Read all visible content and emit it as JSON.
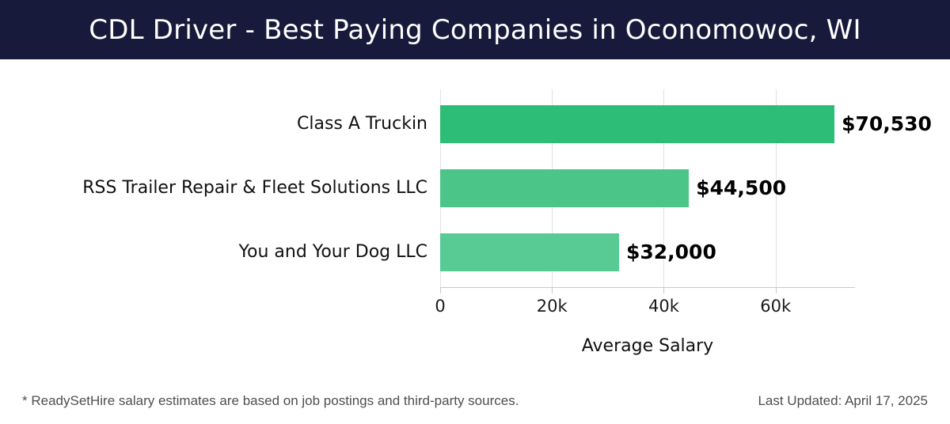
{
  "header": {
    "title": "CDL Driver - Best Paying Companies in Oconomowoc, WI",
    "background_color": "#181a3b",
    "text_color": "#ffffff"
  },
  "chart_data": {
    "type": "bar",
    "orientation": "horizontal",
    "title": "CDL Driver - Best Paying Companies in Oconomowoc, WI",
    "categories": [
      "Class A Truckin",
      "RSS Trailer Repair & Fleet Solutions LLC",
      "You and Your Dog LLC"
    ],
    "values": [
      70530,
      44500,
      32000
    ],
    "value_labels": [
      "$70,530",
      "$44,500",
      "$32,000"
    ],
    "bar_colors": [
      "#2dbd76",
      "#4cc688",
      "#57cb93"
    ],
    "xlabel": "Average Salary",
    "ylabel": "",
    "xlim": [
      0,
      74200
    ],
    "x_ticks": [
      {
        "value": 0,
        "label": "0"
      },
      {
        "value": 20000,
        "label": "20k"
      },
      {
        "value": 40000,
        "label": "40k"
      },
      {
        "value": 60000,
        "label": "60k"
      }
    ],
    "grid": "vertical-gridlines-on",
    "legend": "none"
  },
  "footer": {
    "disclaimer": "* ReadySetHire salary estimates are based on job postings and third-party sources.",
    "last_updated": "Last Updated: April 17, 2025"
  }
}
